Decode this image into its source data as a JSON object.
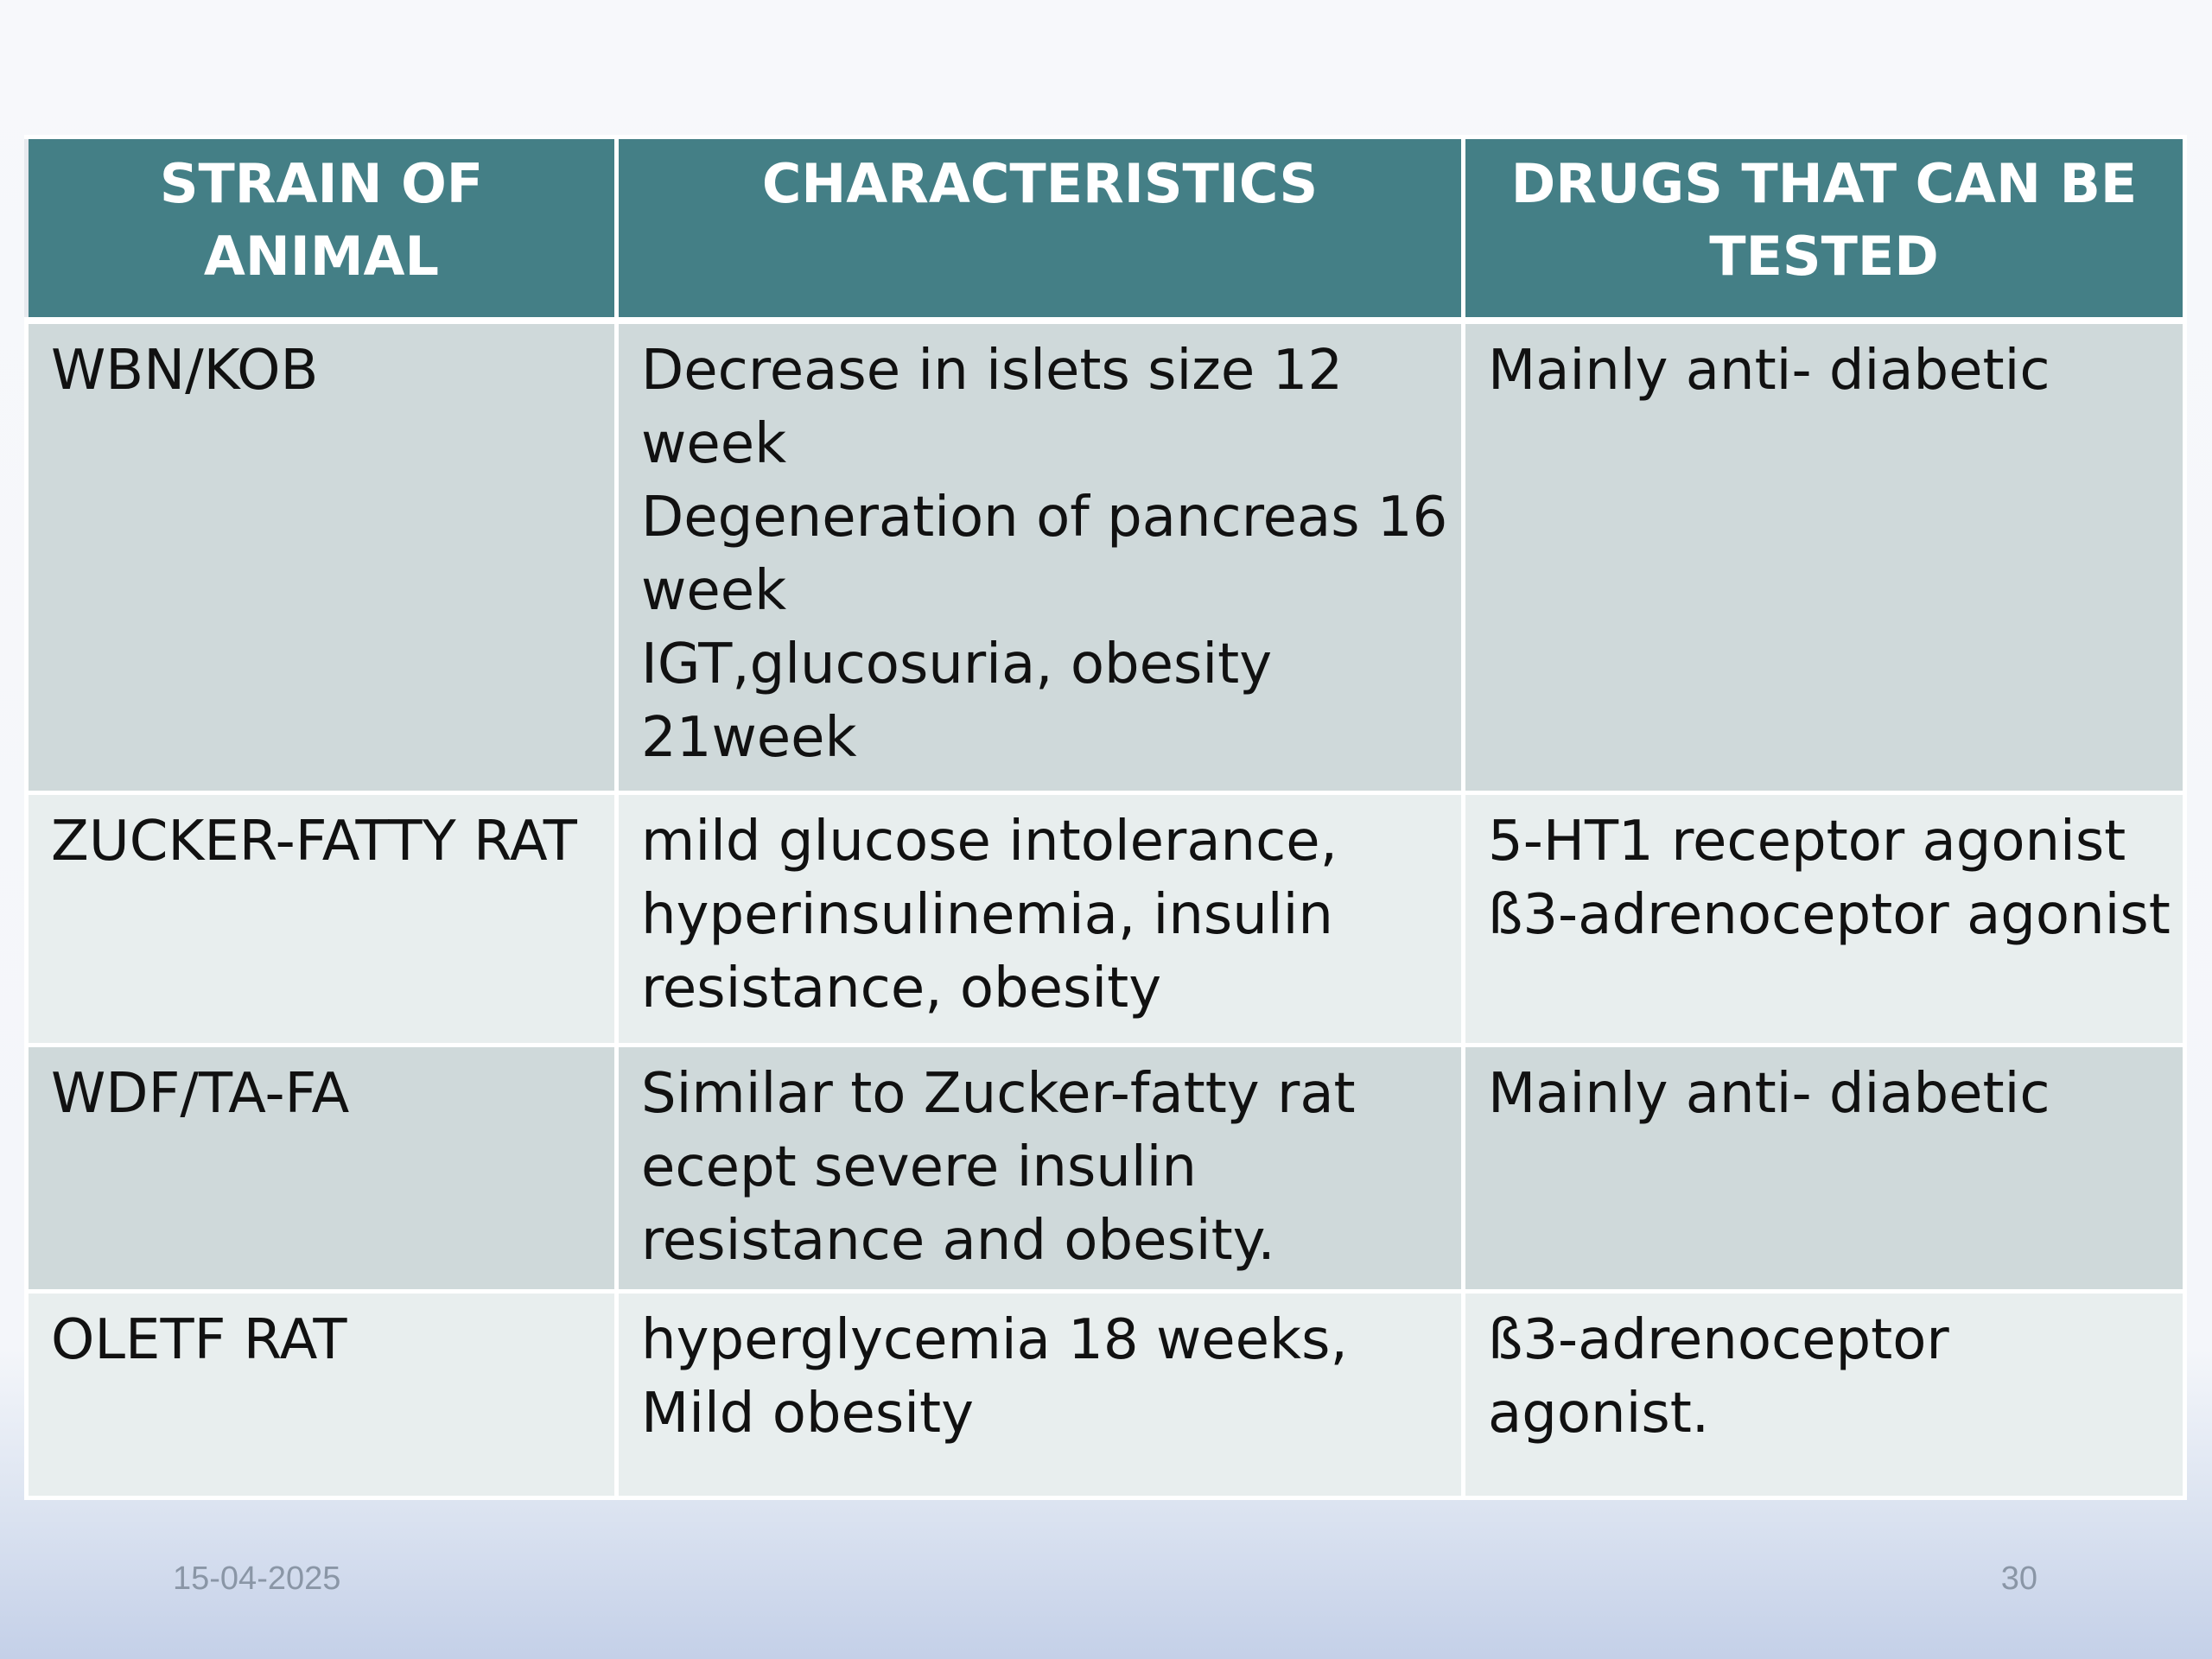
{
  "table": {
    "headers": [
      "STRAIN OF ANIMAL",
      "CHARACTERISTICS",
      "DRUGS THAT CAN BE TESTED"
    ],
    "rows": [
      {
        "strain": "WBN/KOB",
        "characteristics": [
          "Decrease in islets size 12",
          "week",
          "Degeneration of pancreas 16",
          "week",
          "IGT,glucosuria, obesity",
          "21week"
        ],
        "drugs": [
          "Mainly anti- diabetic"
        ]
      },
      {
        "strain": "ZUCKER-FATTY RAT",
        "characteristics": [
          "mild glucose intolerance,",
          "hyperinsulinemia, insulin",
          "resistance, obesity"
        ],
        "drugs": [
          "5-HT1 receptor agonist",
          "ß3-adrenoceptor agonist"
        ]
      },
      {
        "strain": "WDF/TA-FA",
        "characteristics": [
          "Similar to Zucker-fatty rat",
          "ecept severe insulin",
          "resistance and obesity."
        ],
        "drugs": [
          "Mainly anti- diabetic"
        ]
      },
      {
        "strain": "OLETF RAT",
        "characteristics": [
          "hyperglycemia  18 weeks,",
          "Mild obesity"
        ],
        "drugs": [
          "ß3-adrenoceptor",
          "agonist."
        ]
      }
    ]
  },
  "footer": {
    "date": "15-04-2025",
    "page_number": "30"
  },
  "colors": {
    "header_bg": "#447f86",
    "row_dark": "#cfd9da",
    "row_light": "#e8eeee"
  }
}
